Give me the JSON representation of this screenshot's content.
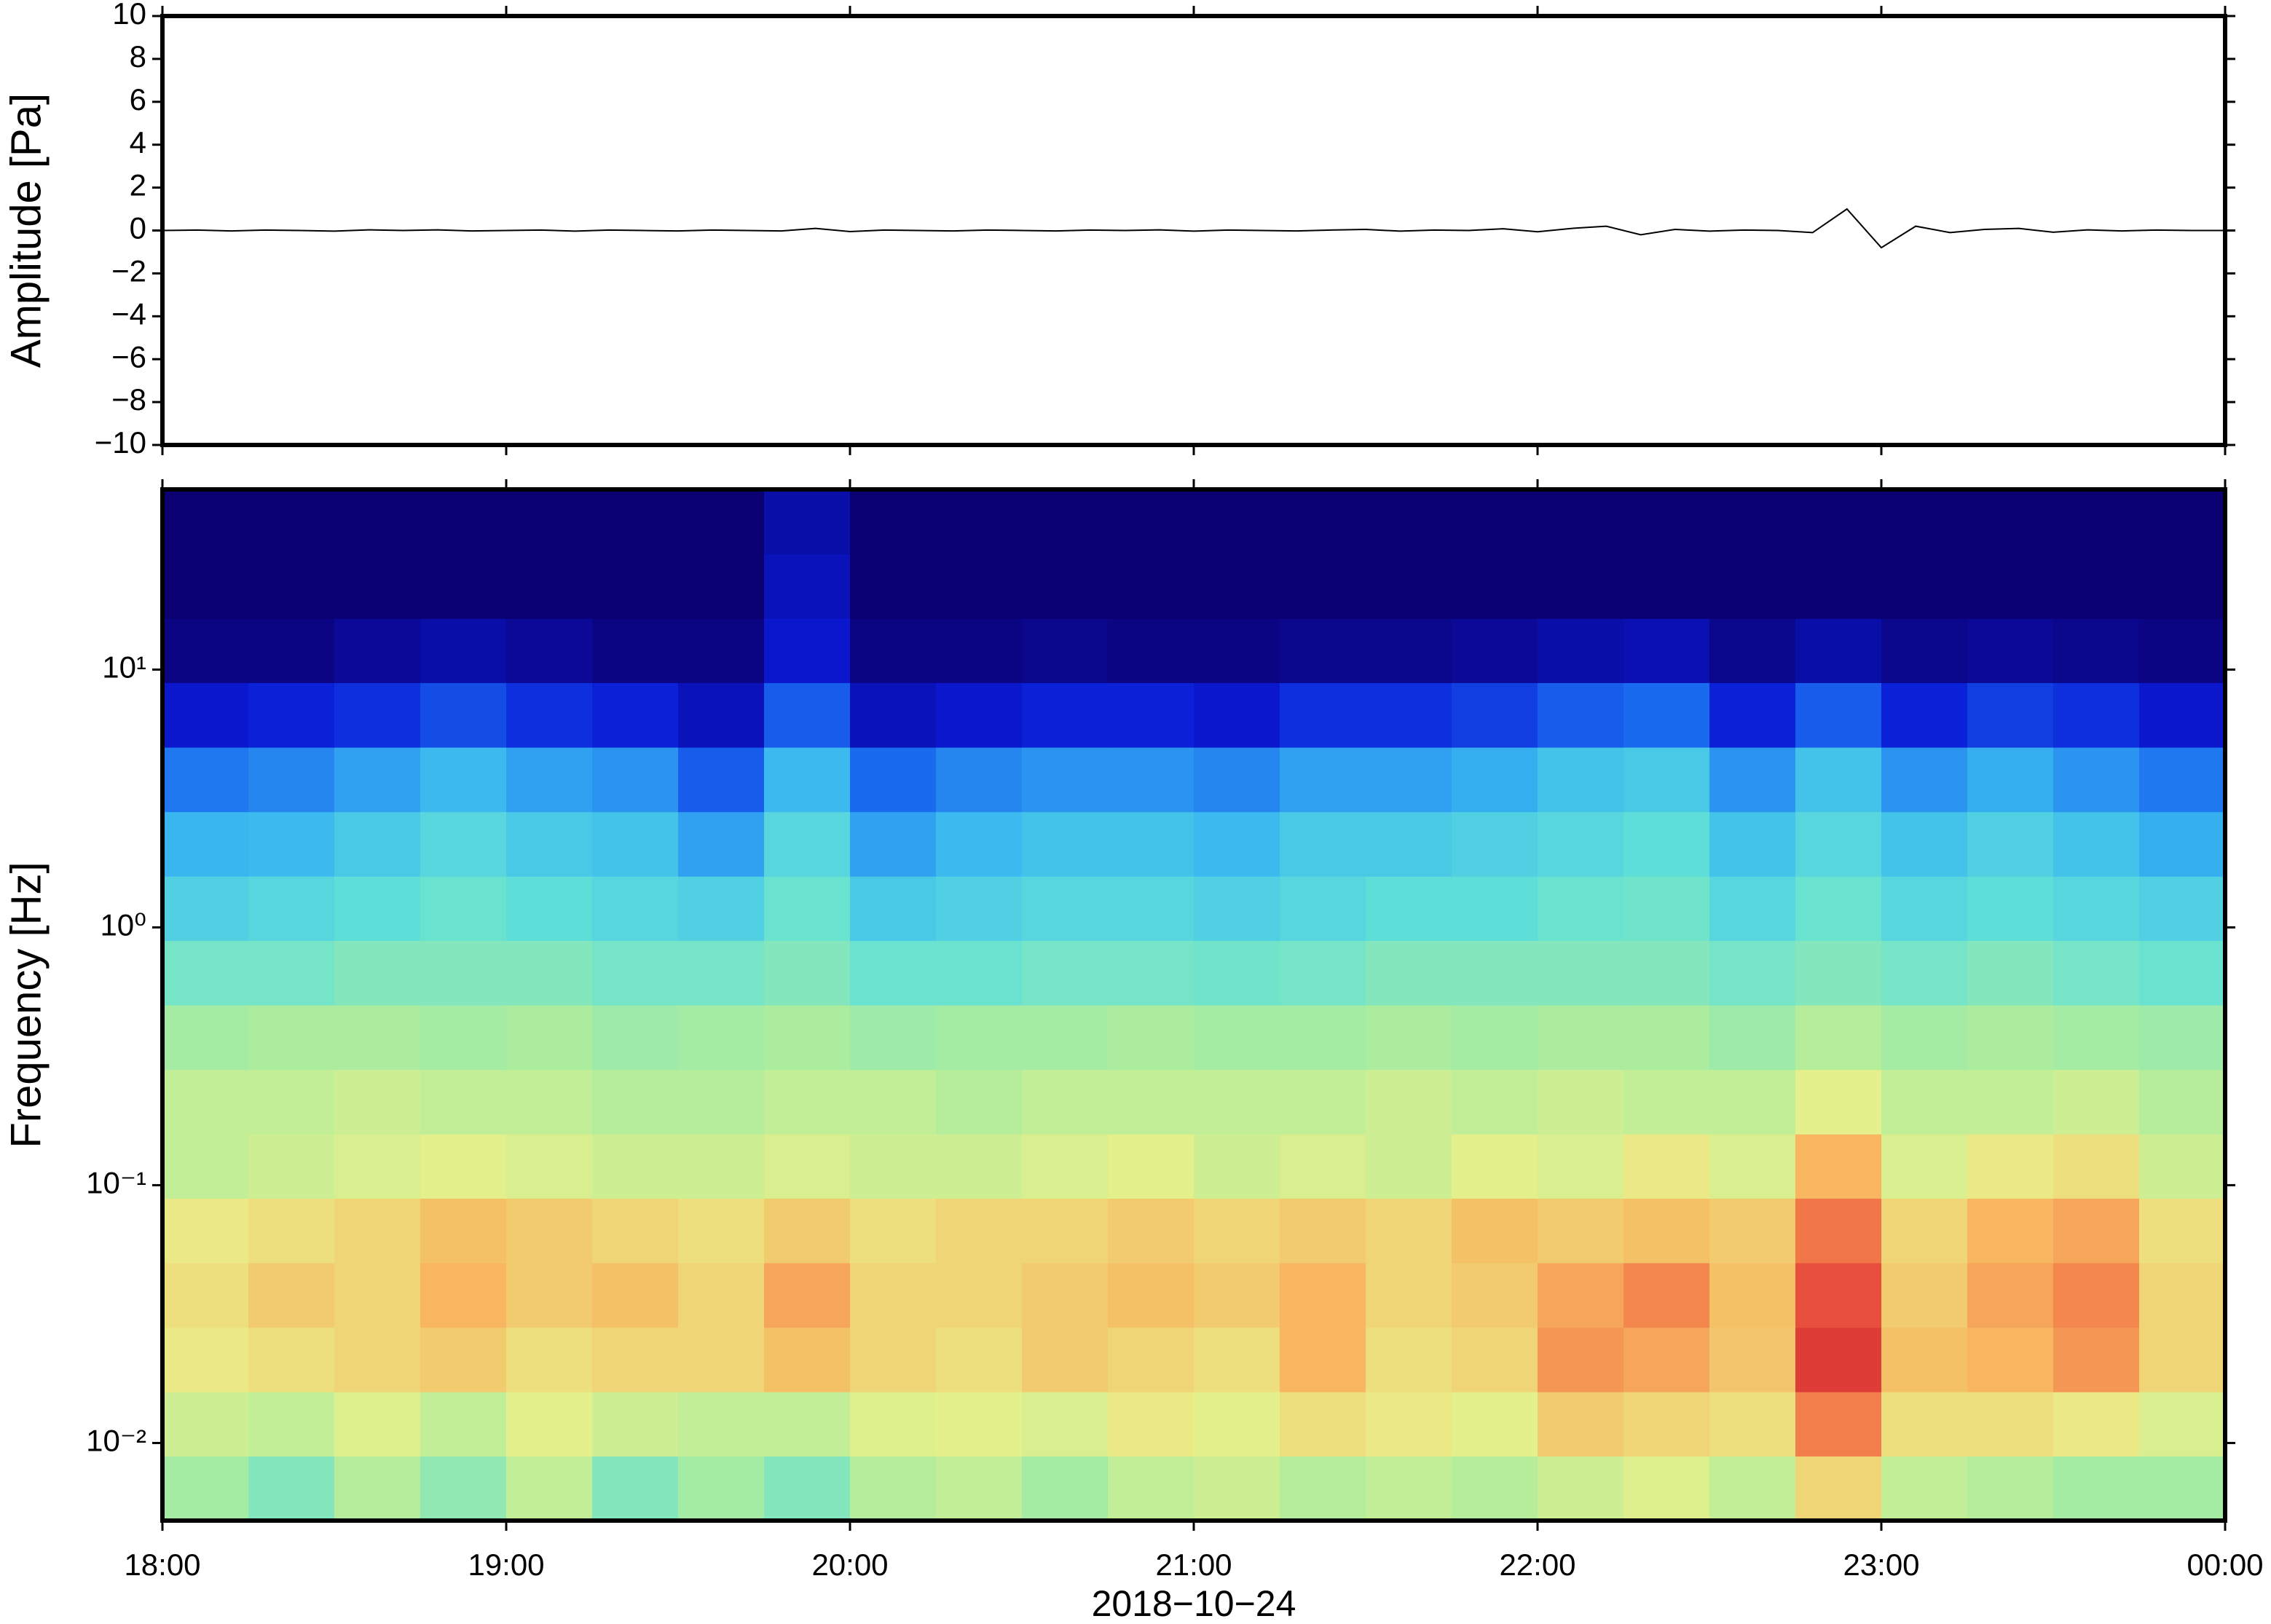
{
  "chart_data": [
    {
      "type": "line",
      "ylabel": "Amplitude [Pa]",
      "color": "#000000",
      "x": [
        18.0,
        18.1,
        18.2,
        18.3,
        18.4,
        18.5,
        18.6,
        18.7,
        18.8,
        18.9,
        19.0,
        19.1,
        19.2,
        19.3,
        19.4,
        19.5,
        19.6,
        19.7,
        19.8,
        19.9,
        20.0,
        20.1,
        20.2,
        20.3,
        20.4,
        20.5,
        20.6,
        20.7,
        20.8,
        20.9,
        21.0,
        21.1,
        21.2,
        21.3,
        21.4,
        21.5,
        21.6,
        21.7,
        21.8,
        21.9,
        22.0,
        22.1,
        22.2,
        22.3,
        22.4,
        22.5,
        22.6,
        22.7,
        22.8,
        22.9,
        23.0,
        23.1,
        23.2,
        23.3,
        23.4,
        23.5,
        23.6,
        23.7,
        23.8,
        23.9,
        24.0
      ],
      "values": [
        0,
        0.02,
        -0.02,
        0.02,
        0,
        -0.03,
        0.03,
        0,
        0.03,
        -0.02,
        0,
        0.02,
        -0.03,
        0.02,
        0,
        -0.02,
        0.02,
        0,
        -0.02,
        0.1,
        -0.05,
        0.02,
        0,
        -0.02,
        0.02,
        0,
        -0.02,
        0.02,
        0,
        0.03,
        -0.03,
        0.02,
        0,
        -0.02,
        0.02,
        0.05,
        -0.03,
        0.02,
        0,
        0.08,
        -0.06,
        0.1,
        0.2,
        -0.2,
        0.05,
        -0.03,
        0.02,
        0,
        -0.1,
        1.0,
        -0.8,
        0.2,
        -0.1,
        0.05,
        0.1,
        -0.08,
        0.03,
        -0.02,
        0.02,
        0,
        0
      ],
      "xlim": [
        18,
        24
      ],
      "xticks": [
        18,
        19,
        20,
        21,
        22,
        23,
        24
      ],
      "ylim": [
        -10,
        10
      ],
      "yticks": [
        {
          "value": -10,
          "label": "−10"
        },
        {
          "value": -8,
          "label": "−8"
        },
        {
          "value": -6,
          "label": "−6"
        },
        {
          "value": -4,
          "label": "−4"
        },
        {
          "value": -2,
          "label": "−2"
        },
        0,
        2,
        4,
        6,
        8,
        10
      ]
    },
    {
      "type": "heatmap",
      "ylabel": "Frequency [Hz]",
      "xlabel": "2018−10−24",
      "log_y": true,
      "colormap": [
        "#0b0072",
        "#0a1ad6",
        "#1a6cf0",
        "#3ab8f0",
        "#5fe0d8",
        "#a8eca0",
        "#e8f08a",
        "#f7b860",
        "#f06040",
        "#d02030"
      ],
      "x": [
        18.0,
        18.25,
        18.5,
        18.75,
        19.0,
        19.25,
        19.5,
        19.75,
        20.0,
        20.25,
        20.5,
        20.75,
        21.0,
        21.25,
        21.5,
        21.75,
        22.0,
        22.25,
        22.5,
        22.75,
        23.0,
        23.25,
        23.5,
        23.75
      ],
      "y": [
        0.005,
        0.0089,
        0.0158,
        0.0281,
        0.05,
        0.089,
        0.158,
        0.281,
        0.5,
        0.89,
        1.58,
        2.81,
        5,
        8.9,
        15.8,
        28.1,
        50
      ],
      "values": [
        [
          0.55,
          0.5,
          0.58,
          0.52,
          0.6,
          0.5,
          0.55,
          0.5,
          0.58,
          0.6,
          0.55,
          0.6,
          0.62,
          0.58,
          0.6,
          0.58,
          0.62,
          0.65,
          0.6,
          0.72,
          0.6,
          0.58,
          0.55,
          0.55
        ],
        [
          0.62,
          0.6,
          0.65,
          0.6,
          0.66,
          0.62,
          0.6,
          0.6,
          0.65,
          0.66,
          0.64,
          0.68,
          0.66,
          0.7,
          0.68,
          0.66,
          0.74,
          0.72,
          0.7,
          0.85,
          0.7,
          0.7,
          0.68,
          0.64
        ],
        [
          0.68,
          0.7,
          0.72,
          0.74,
          0.7,
          0.72,
          0.72,
          0.76,
          0.72,
          0.7,
          0.74,
          0.72,
          0.7,
          0.78,
          0.7,
          0.72,
          0.82,
          0.8,
          0.75,
          0.95,
          0.76,
          0.78,
          0.82,
          0.72
        ],
        [
          0.7,
          0.74,
          0.72,
          0.78,
          0.74,
          0.76,
          0.72,
          0.8,
          0.72,
          0.72,
          0.74,
          0.76,
          0.74,
          0.78,
          0.72,
          0.74,
          0.8,
          0.84,
          0.76,
          0.92,
          0.74,
          0.8,
          0.84,
          0.72
        ],
        [
          0.68,
          0.7,
          0.72,
          0.76,
          0.74,
          0.72,
          0.7,
          0.74,
          0.7,
          0.72,
          0.72,
          0.74,
          0.72,
          0.74,
          0.72,
          0.76,
          0.74,
          0.76,
          0.74,
          0.86,
          0.72,
          0.78,
          0.8,
          0.7
        ],
        [
          0.6,
          0.62,
          0.64,
          0.66,
          0.64,
          0.62,
          0.62,
          0.64,
          0.62,
          0.62,
          0.64,
          0.66,
          0.62,
          0.64,
          0.62,
          0.66,
          0.64,
          0.68,
          0.64,
          0.78,
          0.64,
          0.68,
          0.7,
          0.62
        ],
        [
          0.6,
          0.6,
          0.62,
          0.6,
          0.6,
          0.58,
          0.58,
          0.6,
          0.6,
          0.58,
          0.6,
          0.6,
          0.6,
          0.6,
          0.62,
          0.6,
          0.62,
          0.6,
          0.6,
          0.66,
          0.6,
          0.6,
          0.62,
          0.58
        ],
        [
          0.55,
          0.56,
          0.56,
          0.55,
          0.56,
          0.54,
          0.55,
          0.56,
          0.54,
          0.55,
          0.55,
          0.56,
          0.55,
          0.55,
          0.56,
          0.55,
          0.56,
          0.56,
          0.54,
          0.58,
          0.55,
          0.56,
          0.55,
          0.54
        ],
        [
          0.48,
          0.48,
          0.5,
          0.5,
          0.5,
          0.48,
          0.48,
          0.5,
          0.46,
          0.46,
          0.48,
          0.48,
          0.47,
          0.48,
          0.5,
          0.5,
          0.5,
          0.5,
          0.48,
          0.5,
          0.48,
          0.5,
          0.48,
          0.46
        ],
        [
          0.4,
          0.42,
          0.44,
          0.46,
          0.44,
          0.42,
          0.4,
          0.46,
          0.38,
          0.4,
          0.42,
          0.42,
          0.4,
          0.42,
          0.44,
          0.44,
          0.46,
          0.47,
          0.42,
          0.46,
          0.42,
          0.44,
          0.42,
          0.4
        ],
        [
          0.33,
          0.34,
          0.38,
          0.42,
          0.38,
          0.36,
          0.3,
          0.42,
          0.3,
          0.34,
          0.36,
          0.36,
          0.34,
          0.38,
          0.38,
          0.4,
          0.42,
          0.44,
          0.36,
          0.42,
          0.36,
          0.4,
          0.36,
          0.32
        ],
        [
          0.24,
          0.26,
          0.3,
          0.34,
          0.3,
          0.28,
          0.2,
          0.34,
          0.22,
          0.26,
          0.28,
          0.28,
          0.26,
          0.3,
          0.3,
          0.32,
          0.36,
          0.38,
          0.28,
          0.36,
          0.28,
          0.32,
          0.28,
          0.24
        ],
        [
          0.1,
          0.12,
          0.14,
          0.18,
          0.14,
          0.12,
          0.08,
          0.2,
          0.08,
          0.1,
          0.12,
          0.12,
          0.1,
          0.14,
          0.14,
          0.16,
          0.2,
          0.22,
          0.12,
          0.2,
          0.12,
          0.16,
          0.14,
          0.1
        ],
        [
          0.02,
          0.02,
          0.04,
          0.06,
          0.04,
          0.02,
          0.02,
          0.1,
          0.02,
          0.02,
          0.03,
          0.02,
          0.02,
          0.03,
          0.03,
          0.04,
          0.06,
          0.07,
          0.03,
          0.06,
          0.03,
          0.04,
          0.03,
          0.02
        ],
        [
          0,
          0,
          0,
          0,
          0,
          0,
          0,
          0.08,
          0,
          0,
          0,
          0,
          0,
          0,
          0,
          0,
          0,
          0,
          0,
          0,
          0,
          0,
          0,
          0
        ],
        [
          0,
          0,
          0,
          0,
          0,
          0,
          0,
          0.06,
          0,
          0,
          0,
          0,
          0,
          0,
          0,
          0,
          0,
          0,
          0,
          0,
          0,
          0,
          0,
          0
        ]
      ],
      "xlim": [
        18,
        24
      ],
      "xticks": [
        {
          "value": 18,
          "label": "18:00"
        },
        {
          "value": 19,
          "label": "19:00"
        },
        {
          "value": 20,
          "label": "20:00"
        },
        {
          "value": 21,
          "label": "21:00"
        },
        {
          "value": 22,
          "label": "22:00"
        },
        {
          "value": 23,
          "label": "23:00"
        },
        {
          "value": 24,
          "label": "00:00"
        }
      ],
      "ylim": [
        0.005,
        50
      ],
      "yticks": [
        {
          "value": 0.01,
          "label": "10⁻²"
        },
        {
          "value": 0.1,
          "label": "10⁻¹"
        },
        {
          "value": 1,
          "label": "10⁰"
        },
        {
          "value": 10,
          "label": "10¹"
        }
      ]
    }
  ]
}
